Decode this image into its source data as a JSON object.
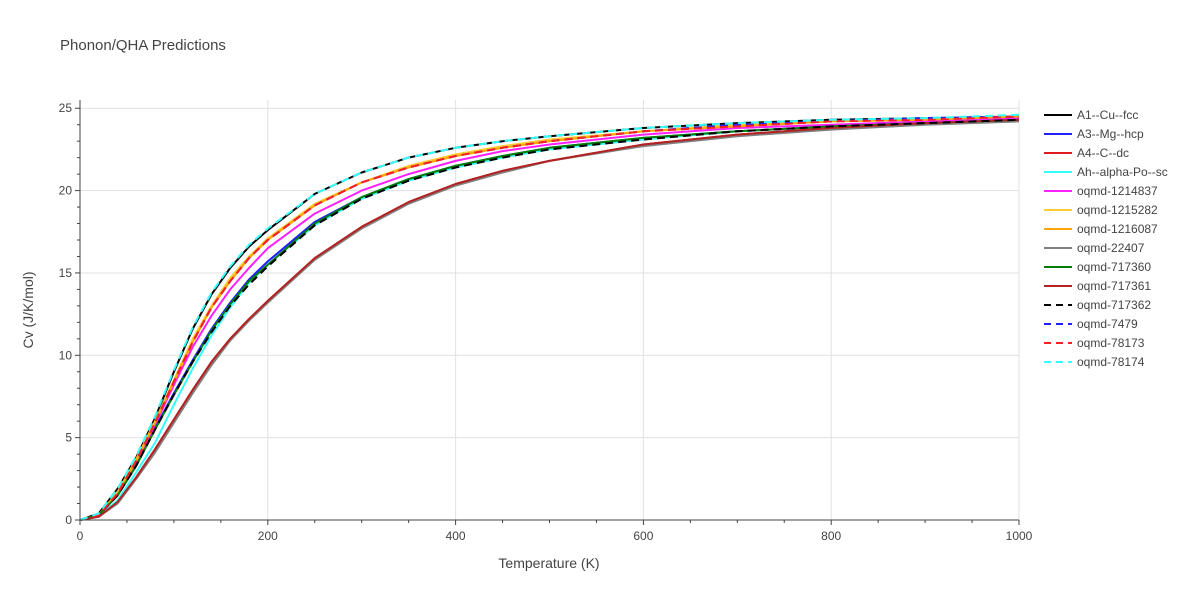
{
  "chart_data": {
    "type": "line",
    "title": "Phonon/QHA Predictions",
    "xlabel": "Temperature (K)",
    "ylabel": "Cv (J/K/mol)",
    "xlim": [
      0,
      1000
    ],
    "ylim": [
      0,
      25.5
    ],
    "xticks": [
      0,
      200,
      400,
      600,
      800,
      1000
    ],
    "yticks": [
      0,
      5,
      10,
      15,
      20,
      25
    ],
    "grid": true,
    "legend_position": "right",
    "x": [
      0,
      20,
      40,
      60,
      80,
      100,
      120,
      140,
      160,
      180,
      200,
      250,
      300,
      350,
      400,
      450,
      500,
      600,
      700,
      800,
      900,
      1000
    ],
    "series": [
      {
        "name": "A1--Cu--fcc",
        "color": "#000000",
        "dash": "solid",
        "values": [
          0,
          0.4,
          1.9,
          3.8,
          6.2,
          9.0,
          11.6,
          13.7,
          15.3,
          16.6,
          17.6,
          19.8,
          21.1,
          22.0,
          22.6,
          23.0,
          23.3,
          23.8,
          24.1,
          24.3,
          24.4,
          24.5
        ]
      },
      {
        "name": "A3--Mg--hcp",
        "color": "#1f1fff",
        "dash": "solid",
        "values": [
          0,
          0.3,
          1.5,
          3.3,
          5.6,
          7.7,
          9.7,
          11.6,
          13.2,
          14.6,
          15.7,
          18.1,
          19.6,
          20.7,
          21.5,
          22.1,
          22.6,
          23.2,
          23.6,
          23.9,
          24.1,
          24.3
        ]
      },
      {
        "name": "A4--C--dc",
        "color": "#e31a1c",
        "dash": "solid",
        "values": [
          0,
          0.2,
          1.1,
          2.6,
          4.3,
          6.1,
          7.9,
          9.6,
          11.0,
          12.2,
          13.3,
          15.9,
          17.8,
          19.3,
          20.4,
          21.2,
          21.8,
          22.8,
          23.4,
          23.8,
          24.1,
          24.3
        ]
      },
      {
        "name": "Ah--alpha-Po--sc",
        "color": "#33ffff",
        "dash": "solid",
        "values": [
          0,
          0.2,
          1.2,
          2.9,
          4.7,
          7.0,
          9.2,
          11.2,
          12.9,
          14.4,
          15.5,
          17.9,
          19.5,
          20.6,
          21.4,
          22.0,
          22.5,
          23.1,
          23.6,
          23.9,
          24.1,
          24.3
        ]
      },
      {
        "name": "oqmd-1214837",
        "color": "#ff1fff",
        "dash": "solid",
        "values": [
          0,
          0.3,
          1.6,
          3.5,
          5.8,
          8.2,
          10.5,
          12.4,
          14.0,
          15.3,
          16.5,
          18.6,
          20.0,
          21.0,
          21.8,
          22.4,
          22.8,
          23.4,
          23.8,
          24.0,
          24.2,
          24.4
        ]
      },
      {
        "name": "oqmd-1215282",
        "color": "#ffcc33",
        "dash": "solid",
        "values": [
          0,
          0.3,
          1.7,
          3.7,
          6.0,
          8.5,
          11.0,
          13.0,
          14.7,
          16.0,
          17.1,
          19.2,
          20.5,
          21.5,
          22.2,
          22.7,
          23.1,
          23.6,
          24.0,
          24.2,
          24.4,
          24.5
        ]
      },
      {
        "name": "oqmd-1216087",
        "color": "#ffa500",
        "dash": "solid",
        "values": [
          0,
          0.3,
          1.6,
          3.6,
          5.9,
          8.4,
          10.8,
          12.9,
          14.5,
          15.9,
          17.0,
          19.1,
          20.5,
          21.4,
          22.1,
          22.6,
          23.0,
          23.6,
          23.9,
          24.2,
          24.3,
          24.5
        ]
      },
      {
        "name": "oqmd-22407",
        "color": "#808080",
        "dash": "solid",
        "values": [
          0,
          0.2,
          1.0,
          2.5,
          4.1,
          5.9,
          7.7,
          9.4,
          10.9,
          12.1,
          13.2,
          15.8,
          17.7,
          19.2,
          20.3,
          21.1,
          21.8,
          22.7,
          23.3,
          23.7,
          24.0,
          24.2
        ]
      },
      {
        "name": "oqmd-717360",
        "color": "#008000",
        "dash": "solid",
        "values": [
          0,
          0.3,
          1.5,
          3.3,
          5.5,
          7.6,
          9.6,
          11.5,
          13.1,
          14.5,
          15.5,
          18.0,
          19.6,
          20.7,
          21.5,
          22.1,
          22.6,
          23.2,
          23.6,
          23.9,
          24.1,
          24.3
        ]
      },
      {
        "name": "oqmd-717361",
        "color": "#b22222",
        "dash": "solid",
        "values": [
          0,
          0.2,
          1.1,
          2.6,
          4.3,
          6.1,
          7.9,
          9.6,
          11.0,
          12.2,
          13.3,
          15.9,
          17.8,
          19.3,
          20.4,
          21.2,
          21.8,
          22.8,
          23.4,
          23.8,
          24.1,
          24.3
        ]
      },
      {
        "name": "oqmd-717362",
        "color": "#000000",
        "dash": "dash",
        "values": [
          0,
          0.3,
          1.5,
          3.3,
          5.5,
          7.6,
          9.6,
          11.4,
          13.0,
          14.3,
          15.4,
          17.9,
          19.5,
          20.6,
          21.4,
          22.0,
          22.5,
          23.1,
          23.6,
          23.9,
          24.1,
          24.3
        ]
      },
      {
        "name": "oqmd-7479",
        "color": "#1f1fff",
        "dash": "dash",
        "values": [
          0,
          0.3,
          1.6,
          3.6,
          5.9,
          8.4,
          10.8,
          12.9,
          14.5,
          15.9,
          17.0,
          19.1,
          20.5,
          21.4,
          22.1,
          22.6,
          23.0,
          23.6,
          24.0,
          24.2,
          24.4,
          24.5
        ]
      },
      {
        "name": "oqmd-78173",
        "color": "#ff1f1f",
        "dash": "dash",
        "values": [
          0,
          0.3,
          1.6,
          3.6,
          5.9,
          8.4,
          10.8,
          12.9,
          14.5,
          15.9,
          17.0,
          19.1,
          20.5,
          21.4,
          22.1,
          22.6,
          23.0,
          23.6,
          23.9,
          24.2,
          24.3,
          24.5
        ]
      },
      {
        "name": "oqmd-78174",
        "color": "#33ffff",
        "dash": "dash",
        "values": [
          0,
          0.4,
          1.9,
          3.9,
          6.3,
          9.1,
          11.7,
          13.8,
          15.4,
          16.7,
          17.7,
          19.8,
          21.1,
          22.0,
          22.6,
          23.0,
          23.3,
          23.8,
          24.1,
          24.3,
          24.4,
          24.6
        ]
      }
    ]
  }
}
